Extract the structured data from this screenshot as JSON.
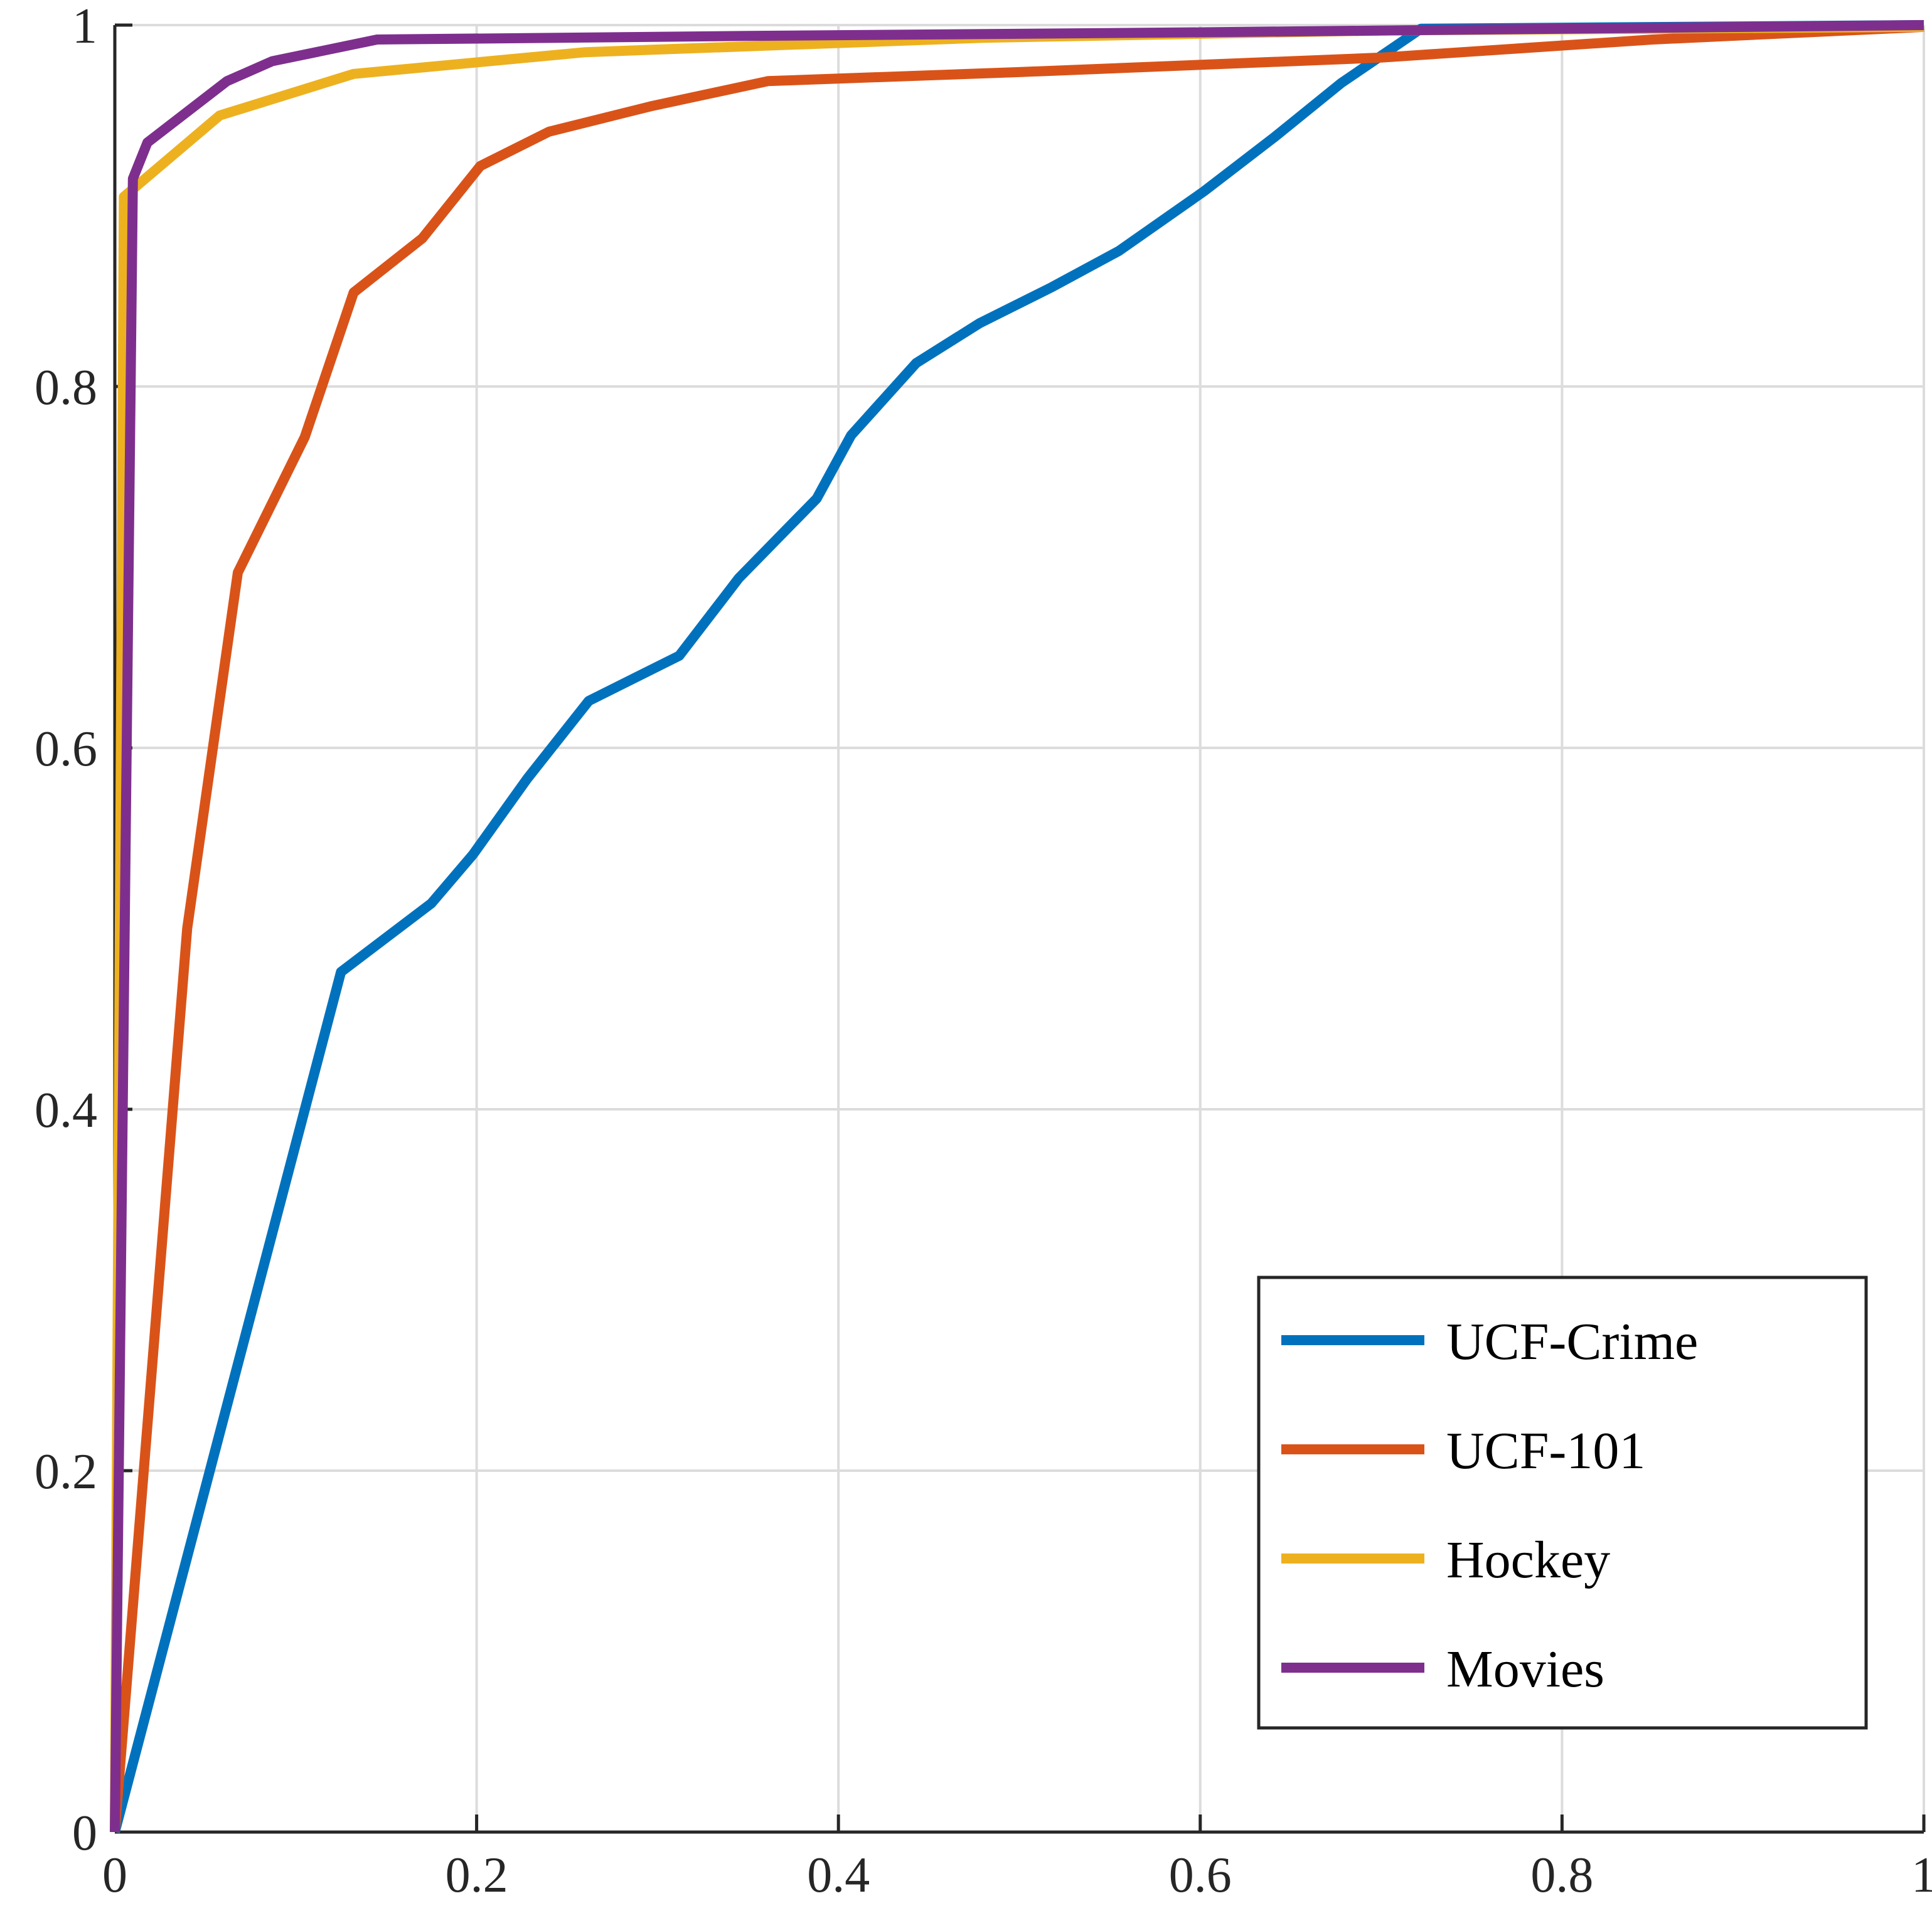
{
  "chart_data": {
    "type": "line",
    "title": "",
    "xlabel": "",
    "ylabel": "",
    "xlim": [
      0,
      1
    ],
    "ylim": [
      0,
      1
    ],
    "xticks": [
      "0",
      "0.2",
      "0.4",
      "0.6",
      "0.8",
      "1"
    ],
    "yticks": [
      "0",
      "0.2",
      "0.4",
      "0.6",
      "0.8",
      "1"
    ],
    "grid": true,
    "legend_position": "bottom-right",
    "series": [
      {
        "name": "UCF-Crime",
        "color": "#0072BD",
        "x": [
          0,
          0.125,
          0.175,
          0.198,
          0.228,
          0.262,
          0.312,
          0.345,
          0.388,
          0.407,
          0.443,
          0.478,
          0.518,
          0.555,
          0.602,
          0.641,
          0.678,
          0.722,
          1.0
        ],
        "y": [
          0,
          0.476,
          0.514,
          0.541,
          0.583,
          0.626,
          0.651,
          0.694,
          0.738,
          0.773,
          0.813,
          0.835,
          0.855,
          0.875,
          0.908,
          0.938,
          0.968,
          0.998,
          1.0
        ]
      },
      {
        "name": "UCF-101",
        "color": "#D95319",
        "x": [
          0,
          0.04,
          0.068,
          0.105,
          0.132,
          0.17,
          0.202,
          0.24,
          0.296,
          0.361,
          0.5,
          0.7,
          0.85,
          1.0
        ],
        "y": [
          0,
          0.5,
          0.697,
          0.772,
          0.852,
          0.882,
          0.922,
          0.941,
          0.955,
          0.969,
          0.974,
          0.982,
          0.992,
          0.999
        ]
      },
      {
        "name": "Hockey",
        "color": "#EDB120",
        "x": [
          0,
          0.005,
          0.058,
          0.132,
          0.26,
          0.48,
          0.7,
          1.0
        ],
        "y": [
          0,
          0.905,
          0.95,
          0.973,
          0.985,
          0.993,
          0.997,
          0.999
        ]
      },
      {
        "name": "Movies",
        "color": "#7E2F8E",
        "x": [
          0,
          0.01,
          0.018,
          0.062,
          0.087,
          0.145,
          0.35,
          0.6,
          0.8,
          1.0
        ],
        "y": [
          0,
          0.915,
          0.935,
          0.969,
          0.98,
          0.992,
          0.994,
          0.996,
          0.998,
          1.0
        ]
      }
    ]
  }
}
